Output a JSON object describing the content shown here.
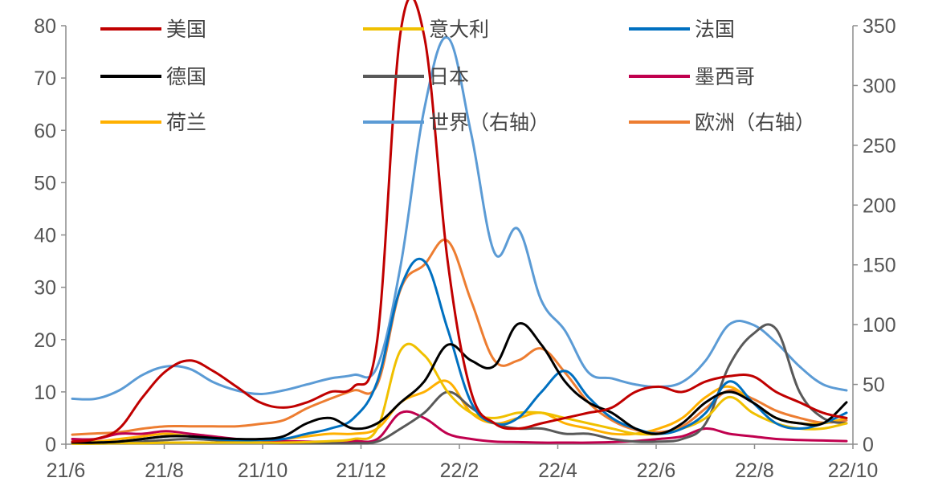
{
  "chart_data": {
    "type": "line",
    "x_ticks": [
      "21/6",
      "21/8",
      "21/10",
      "21/12",
      "22/2",
      "22/4",
      "22/6",
      "22/8",
      "22/10"
    ],
    "x": [
      "21/6",
      "21/6.5",
      "21/7",
      "21/7.5",
      "21/8",
      "21/8.5",
      "21/9",
      "21/9.5",
      "21/10",
      "21/10.5",
      "21/11",
      "21/11.5",
      "21/12",
      "21/12.5",
      "22/1",
      "22/1.2",
      "22/1.5",
      "22/2",
      "22/2.5",
      "22/3",
      "22/3.5",
      "22/4",
      "22/4.5",
      "22/5",
      "22/5.5",
      "22/6",
      "22/6.5",
      "22/7",
      "22/7.5",
      "22/8",
      "22/8.5",
      "22/9",
      "22/9.5",
      "22/10"
    ],
    "y_left_ticks": [
      "0",
      "10",
      "20",
      "30",
      "40",
      "50",
      "60",
      "70",
      "80"
    ],
    "y_left_range": [
      0,
      80
    ],
    "y_right_ticks": [
      "0",
      "50",
      "100",
      "150",
      "200",
      "250",
      "300",
      "350"
    ],
    "y_right_range": [
      0,
      350
    ],
    "legend_columns": 3,
    "series": [
      {
        "name": "美国",
        "color": "#c00000",
        "axis": "left",
        "values": [
          0.5,
          1,
          3,
          9,
          14,
          16,
          14,
          11,
          8,
          7,
          8,
          10,
          11,
          20,
          79,
          78,
          35,
          10,
          4,
          3,
          4,
          5,
          6,
          7,
          10,
          11,
          10,
          12,
          13,
          13,
          10,
          8,
          6,
          5
        ]
      },
      {
        "name": "意大利",
        "color": "#f0c000",
        "axis": "left",
        "values": [
          0.1,
          0.1,
          0.2,
          0.2,
          0.3,
          0.3,
          0.3,
          0.3,
          0.3,
          0.3,
          0.4,
          0.6,
          1,
          3,
          18,
          17,
          10,
          6,
          5,
          6,
          6,
          5,
          4,
          3,
          2,
          2,
          3,
          5,
          9,
          6,
          4,
          3,
          3,
          4
        ]
      },
      {
        "name": "法国",
        "color": "#0070c0",
        "axis": "left",
        "values": [
          0.3,
          0.3,
          0.5,
          1,
          1.5,
          1.5,
          1,
          0.8,
          0.8,
          1,
          2,
          3,
          5,
          12,
          30,
          35,
          22,
          8,
          4,
          5,
          10,
          14,
          9,
          5,
          3,
          2,
          3,
          6,
          12,
          8,
          4,
          3,
          4,
          6
        ]
      },
      {
        "name": "德国",
        "color": "#000000",
        "axis": "left",
        "values": [
          0.3,
          0.3,
          0.5,
          1,
          1.5,
          1.5,
          1.2,
          1,
          1,
          1.5,
          4,
          5,
          3,
          4,
          8,
          12,
          19,
          16,
          15,
          23,
          19,
          12,
          8,
          6,
          3,
          2,
          4,
          8,
          10,
          8,
          5,
          4,
          4,
          8
        ]
      },
      {
        "name": "日本",
        "color": "#595959",
        "axis": "left",
        "values": [
          0.2,
          0.2,
          0.3,
          0.5,
          0.8,
          1,
          0.8,
          0.5,
          0.3,
          0.2,
          0.2,
          0.2,
          0.2,
          0.5,
          3,
          6,
          10,
          7,
          4,
          3,
          3,
          2,
          2,
          1,
          0.5,
          0.5,
          1,
          4,
          15,
          21,
          22,
          10,
          5,
          4
        ]
      },
      {
        "name": "墨西哥",
        "color": "#c0004e",
        "axis": "left",
        "values": [
          1,
          1,
          2,
          2,
          2.5,
          2,
          1.5,
          1,
          0.8,
          0.6,
          0.5,
          0.5,
          0.6,
          1,
          6,
          5,
          2,
          1,
          0.5,
          0.4,
          0.3,
          0.3,
          0.3,
          0.4,
          0.6,
          1,
          1.5,
          3,
          2,
          1.5,
          1,
          0.8,
          0.7,
          0.6
        ]
      },
      {
        "name": "荷兰",
        "color": "#ffb000",
        "axis": "left",
        "values": [
          0.5,
          0.5,
          1,
          1.5,
          2,
          1.5,
          1,
          0.8,
          0.8,
          1,
          1.5,
          2,
          2,
          3,
          8,
          10,
          12,
          6,
          4,
          5,
          6,
          4,
          3,
          2,
          2,
          3,
          5,
          9,
          11,
          8,
          5,
          4,
          4,
          5
        ]
      },
      {
        "name": "世界（右轴）",
        "color": "#5b9bd5",
        "axis": "right",
        "values": [
          38,
          38,
          45,
          58,
          65,
          63,
          52,
          45,
          42,
          45,
          50,
          55,
          58,
          65,
          150,
          280,
          340,
          260,
          160,
          180,
          120,
          95,
          60,
          55,
          50,
          48,
          52,
          70,
          100,
          100,
          85,
          65,
          50,
          45
        ]
      },
      {
        "name": "欧洲（右轴）",
        "color": "#ed7d31",
        "axis": "right",
        "values": [
          8,
          9,
          10,
          13,
          15,
          15,
          15,
          15,
          17,
          20,
          30,
          38,
          45,
          50,
          130,
          150,
          170,
          120,
          70,
          70,
          80,
          60,
          35,
          20,
          12,
          10,
          15,
          30,
          45,
          38,
          28,
          22,
          18,
          20
        ]
      }
    ]
  }
}
